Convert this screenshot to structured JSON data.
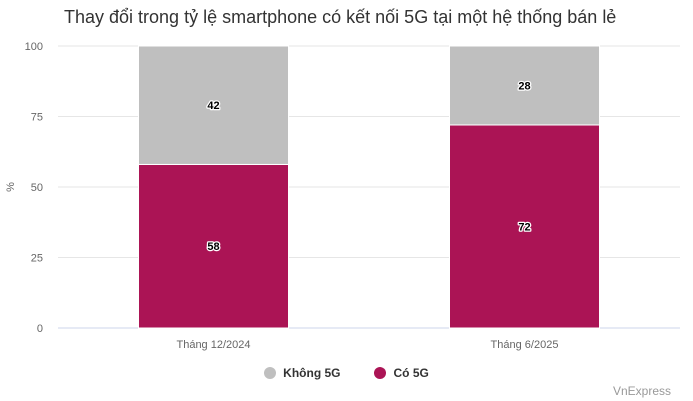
{
  "header": {
    "title": "Thay đổi trong tỷ lệ smartphone có kết nối 5G tại một hệ thống bán lẻ"
  },
  "source": "VnExpress",
  "chart_data": {
    "type": "bar",
    "stacked": true,
    "title": "Thay đổi trong tỷ lệ smartphone có kết nối 5G tại một hệ thống bán lẻ",
    "xlabel": "",
    "ylabel": "%",
    "categories": [
      "Tháng 12/2024",
      "Tháng 6/2025"
    ],
    "series": [
      {
        "name": "Có 5G",
        "values": [
          58,
          72
        ],
        "color": "#ab1455"
      },
      {
        "name": "Không 5G",
        "values": [
          42,
          28
        ],
        "color": "#bfbfbf"
      }
    ],
    "ylim": [
      0,
      100
    ],
    "yticks": [
      0,
      25,
      50,
      75,
      100
    ],
    "grid": true,
    "legend_position": "bottom",
    "legend_order": [
      "Không 5G",
      "Có 5G"
    ]
  }
}
